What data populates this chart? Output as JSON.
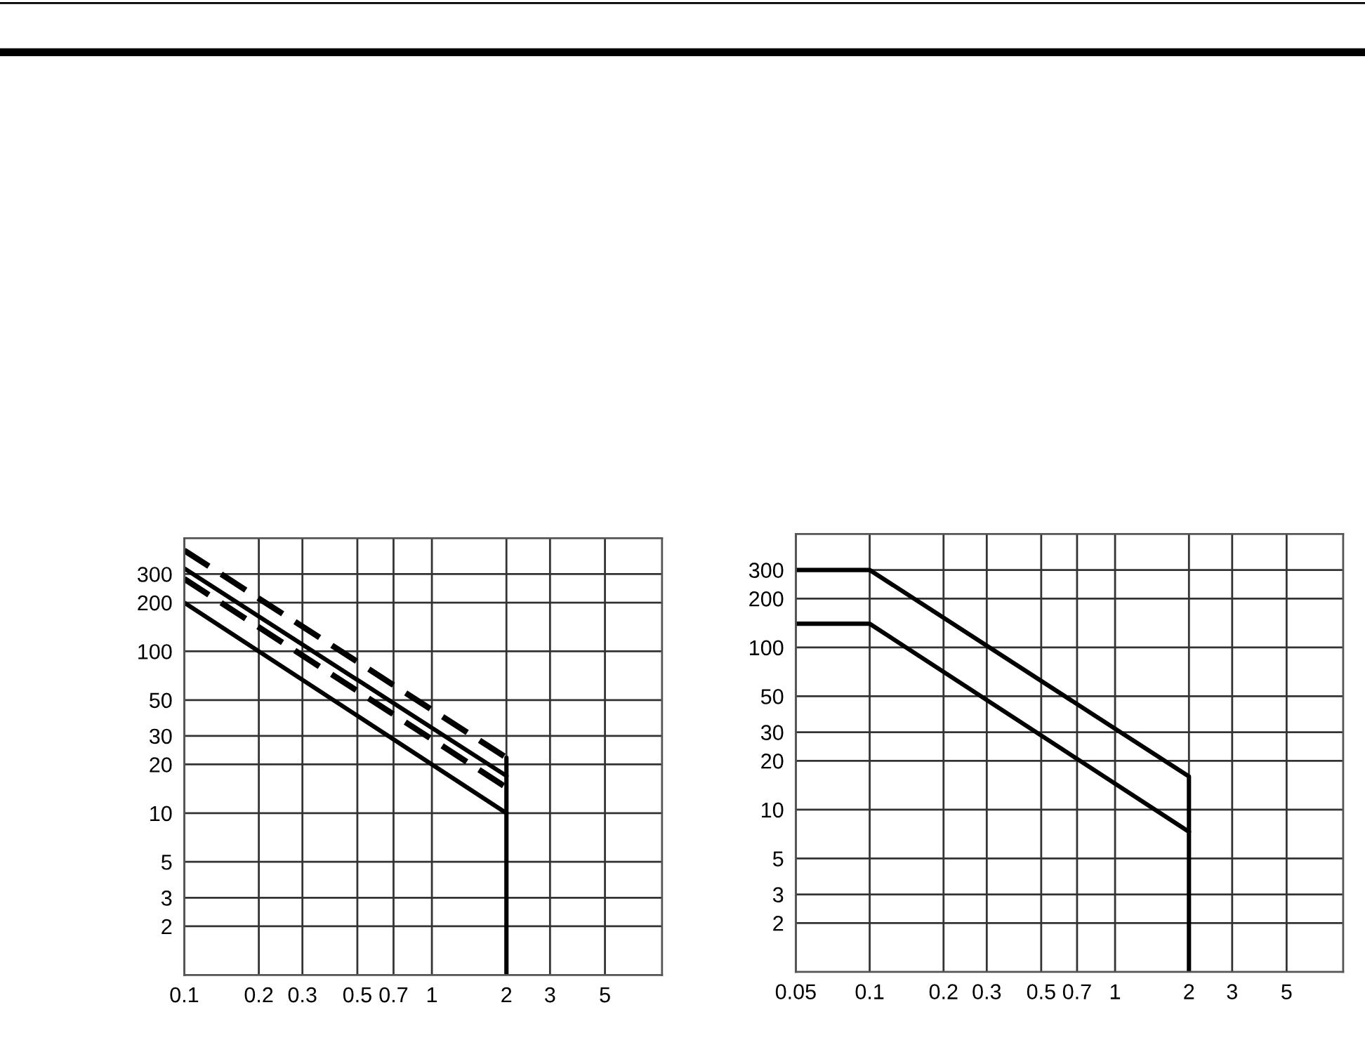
{
  "chart_data": [
    {
      "type": "line",
      "log": "xy",
      "grid": true,
      "marker": "none",
      "xlim": [
        0.1,
        8.5
      ],
      "ylim": [
        1,
        500
      ],
      "xticks": [
        0.1,
        0.2,
        0.3,
        0.5,
        0.7,
        1,
        2,
        3,
        5
      ],
      "yticks": [
        2,
        3,
        5,
        10,
        20,
        30,
        50,
        100,
        200,
        300
      ],
      "series": [
        {
          "x": [
            0.1,
            2
          ],
          "values": [
            420,
            22
          ],
          "color": "#000000",
          "line_style": "dashed"
        },
        {
          "x": [
            0.1,
            2
          ],
          "values": [
            325,
            17
          ],
          "color": "#000000",
          "line_style": "solid"
        },
        {
          "x": [
            0.1,
            2
          ],
          "values": [
            280,
            14.4
          ],
          "color": "#000000",
          "line_style": "dashed"
        },
        {
          "x": [
            0.1,
            2
          ],
          "values": [
            200,
            10
          ],
          "color": "#000000",
          "line_style": "solid"
        },
        {
          "x": [
            2,
            2
          ],
          "values": [
            22,
            1
          ],
          "color": "#000000",
          "line_style": "solid"
        }
      ]
    },
    {
      "type": "line",
      "log": "xy",
      "grid": true,
      "marker": "none",
      "xlim": [
        0.05,
        8.5
      ],
      "ylim": [
        1,
        500
      ],
      "xticks": [
        0.05,
        0.1,
        0.2,
        0.3,
        0.5,
        0.7,
        1,
        2,
        3,
        5
      ],
      "yticks": [
        2,
        3,
        5,
        10,
        20,
        30,
        50,
        100,
        200,
        300
      ],
      "series": [
        {
          "x": [
            0.05,
            0.1,
            2,
            2
          ],
          "values": [
            300,
            300,
            16,
            1
          ],
          "color": "#000000",
          "line_style": "solid"
        },
        {
          "x": [
            0.05,
            0.1,
            2
          ],
          "values": [
            140,
            140,
            7.3
          ],
          "color": "#000000",
          "line_style": "solid"
        }
      ]
    }
  ]
}
